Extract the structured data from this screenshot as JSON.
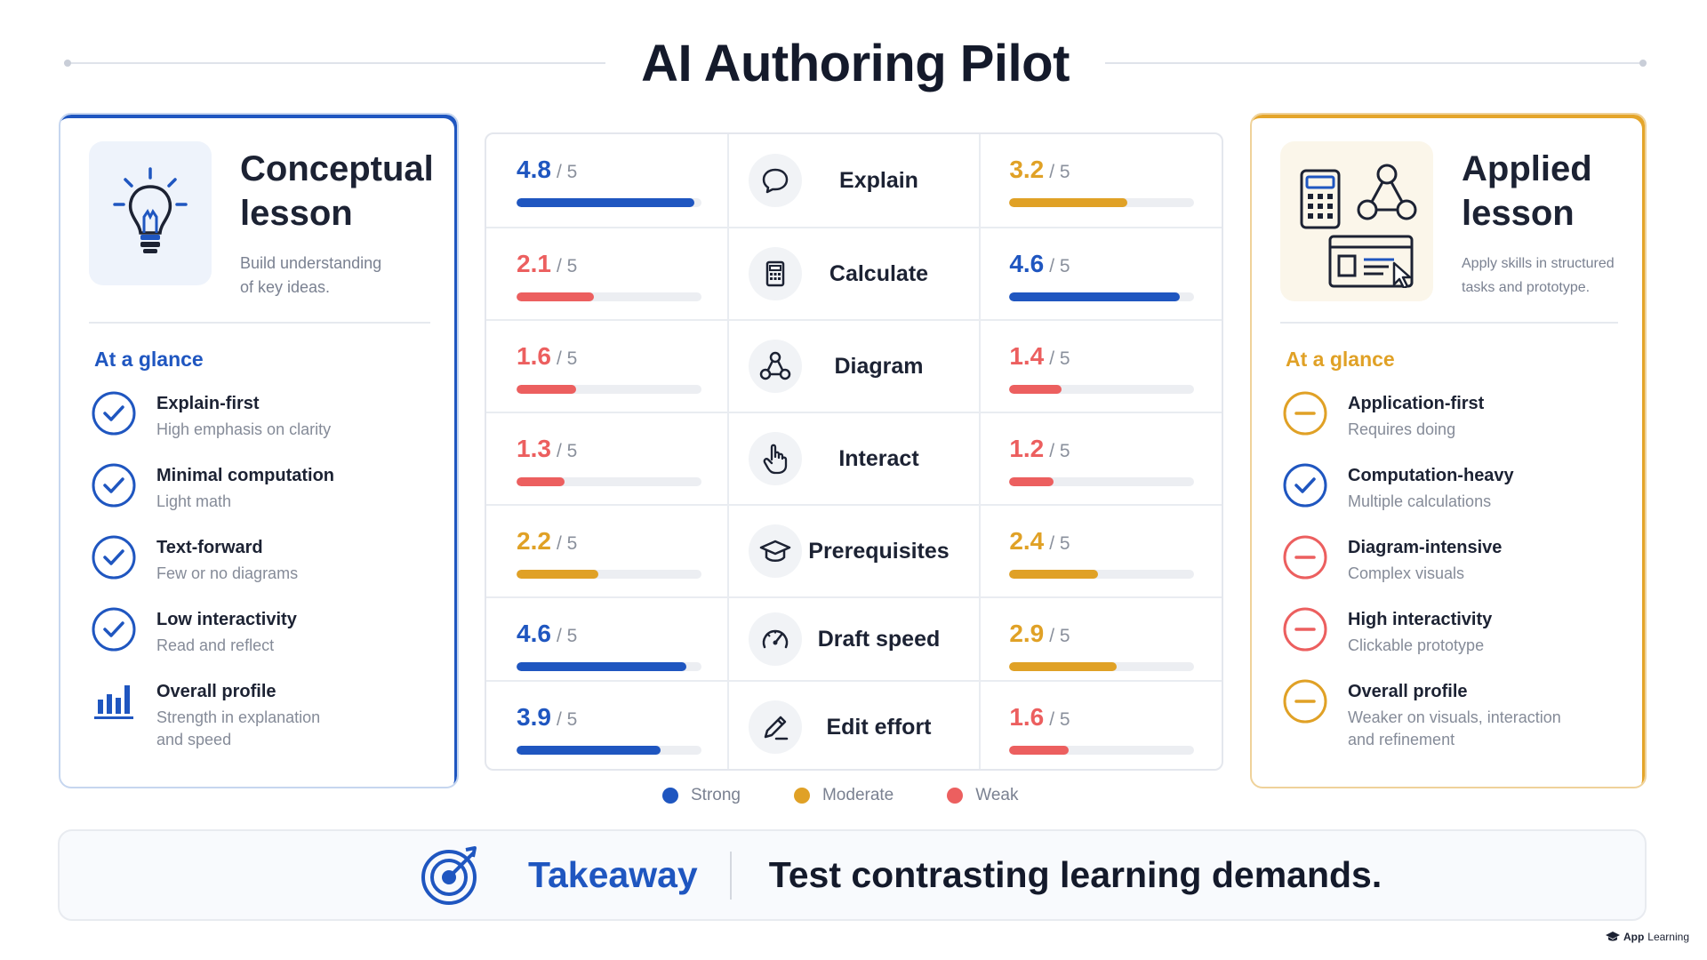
{
  "header": {
    "title": "AI Authoring Pilot"
  },
  "colors": {
    "strong": "#1f56c0",
    "moderate": "#e0a126",
    "weak": "#ec5f5f"
  },
  "left_card": {
    "title_line1": "Conceptual",
    "title_line2": "lesson",
    "subtitle_line1": "Build understanding",
    "subtitle_line2": "of key ideas.",
    "icon": "lightbulb-icon",
    "glance_heading": "At a glance",
    "items": [
      {
        "icon": "check-circle-icon",
        "title": "Explain-first",
        "desc": "High emphasis on clarity"
      },
      {
        "icon": "check-circle-icon",
        "title": "Minimal computation",
        "desc": "Light math"
      },
      {
        "icon": "check-circle-icon",
        "title": "Text-forward",
        "desc": "Few or no diagrams"
      },
      {
        "icon": "check-circle-icon",
        "title": "Low interactivity",
        "desc": "Read and reflect"
      },
      {
        "icon": "bar-chart-icon",
        "title": "Overall profile",
        "desc_line1": "Strength in explanation",
        "desc_line2": "and speed"
      }
    ]
  },
  "right_card": {
    "title_line1": "Applied",
    "title_line2": "lesson",
    "subtitle_line1": "Apply skills in structured",
    "subtitle_line2": "tasks and prototype.",
    "icon": "calculator-diagram-window-icon",
    "glance_heading": "At a glance",
    "items": [
      {
        "icon": "minus-circle-icon",
        "tone": "moderate",
        "title": "Application-first",
        "desc": "Requires doing"
      },
      {
        "icon": "check-circle-icon",
        "tone": "strong",
        "title": "Computation-heavy",
        "desc": "Multiple calculations"
      },
      {
        "icon": "minus-circle-icon",
        "tone": "weak",
        "title": "Diagram-intensive",
        "desc": "Complex visuals"
      },
      {
        "icon": "minus-circle-icon",
        "tone": "weak",
        "title": "High interactivity",
        "desc": "Clickable prototype"
      },
      {
        "icon": "minus-circle-icon",
        "tone": "moderate",
        "title": "Overall profile",
        "desc_line1": "Weaker on visuals, interaction",
        "desc_line2": "and refinement"
      }
    ]
  },
  "table": {
    "denominator": "/ 5",
    "rows": [
      {
        "label": "Explain",
        "icon": "speech-bubble-icon",
        "left": {
          "score": "4.8",
          "value": 4.8,
          "tone": "strong"
        },
        "right": {
          "score": "3.2",
          "value": 3.2,
          "tone": "moderate"
        }
      },
      {
        "label": "Calculate",
        "icon": "calculator-icon",
        "left": {
          "score": "2.1",
          "value": 2.1,
          "tone": "weak"
        },
        "right": {
          "score": "4.6",
          "value": 4.6,
          "tone": "strong"
        }
      },
      {
        "label": "Diagram",
        "icon": "diagram-icon",
        "left": {
          "score": "1.6",
          "value": 1.6,
          "tone": "weak"
        },
        "right": {
          "score": "1.4",
          "value": 1.4,
          "tone": "weak"
        }
      },
      {
        "label": "Interact",
        "icon": "pointer-hand-icon",
        "left": {
          "score": "1.3",
          "value": 1.3,
          "tone": "weak"
        },
        "right": {
          "score": "1.2",
          "value": 1.2,
          "tone": "weak"
        }
      },
      {
        "label": "Prerequisites",
        "icon": "graduation-cap-icon",
        "left": {
          "score": "2.2",
          "value": 2.2,
          "tone": "moderate"
        },
        "right": {
          "score": "2.4",
          "value": 2.4,
          "tone": "moderate"
        }
      },
      {
        "label": "Draft speed",
        "icon": "speedometer-icon",
        "left": {
          "score": "4.6",
          "value": 4.6,
          "tone": "strong"
        },
        "right": {
          "score": "2.9",
          "value": 2.9,
          "tone": "moderate"
        }
      },
      {
        "label": "Edit effort",
        "icon": "pencil-icon",
        "left": {
          "score": "3.9",
          "value": 3.9,
          "tone": "strong"
        },
        "right": {
          "score": "1.6",
          "value": 1.6,
          "tone": "weak"
        }
      }
    ]
  },
  "legend": {
    "strong": "Strong",
    "moderate": "Moderate",
    "weak": "Weak"
  },
  "takeaway": {
    "label": "Takeaway",
    "text": "Test contrasting learning demands.",
    "icon": "target-icon"
  },
  "brand": {
    "bold": "App",
    "light": "Learning"
  }
}
